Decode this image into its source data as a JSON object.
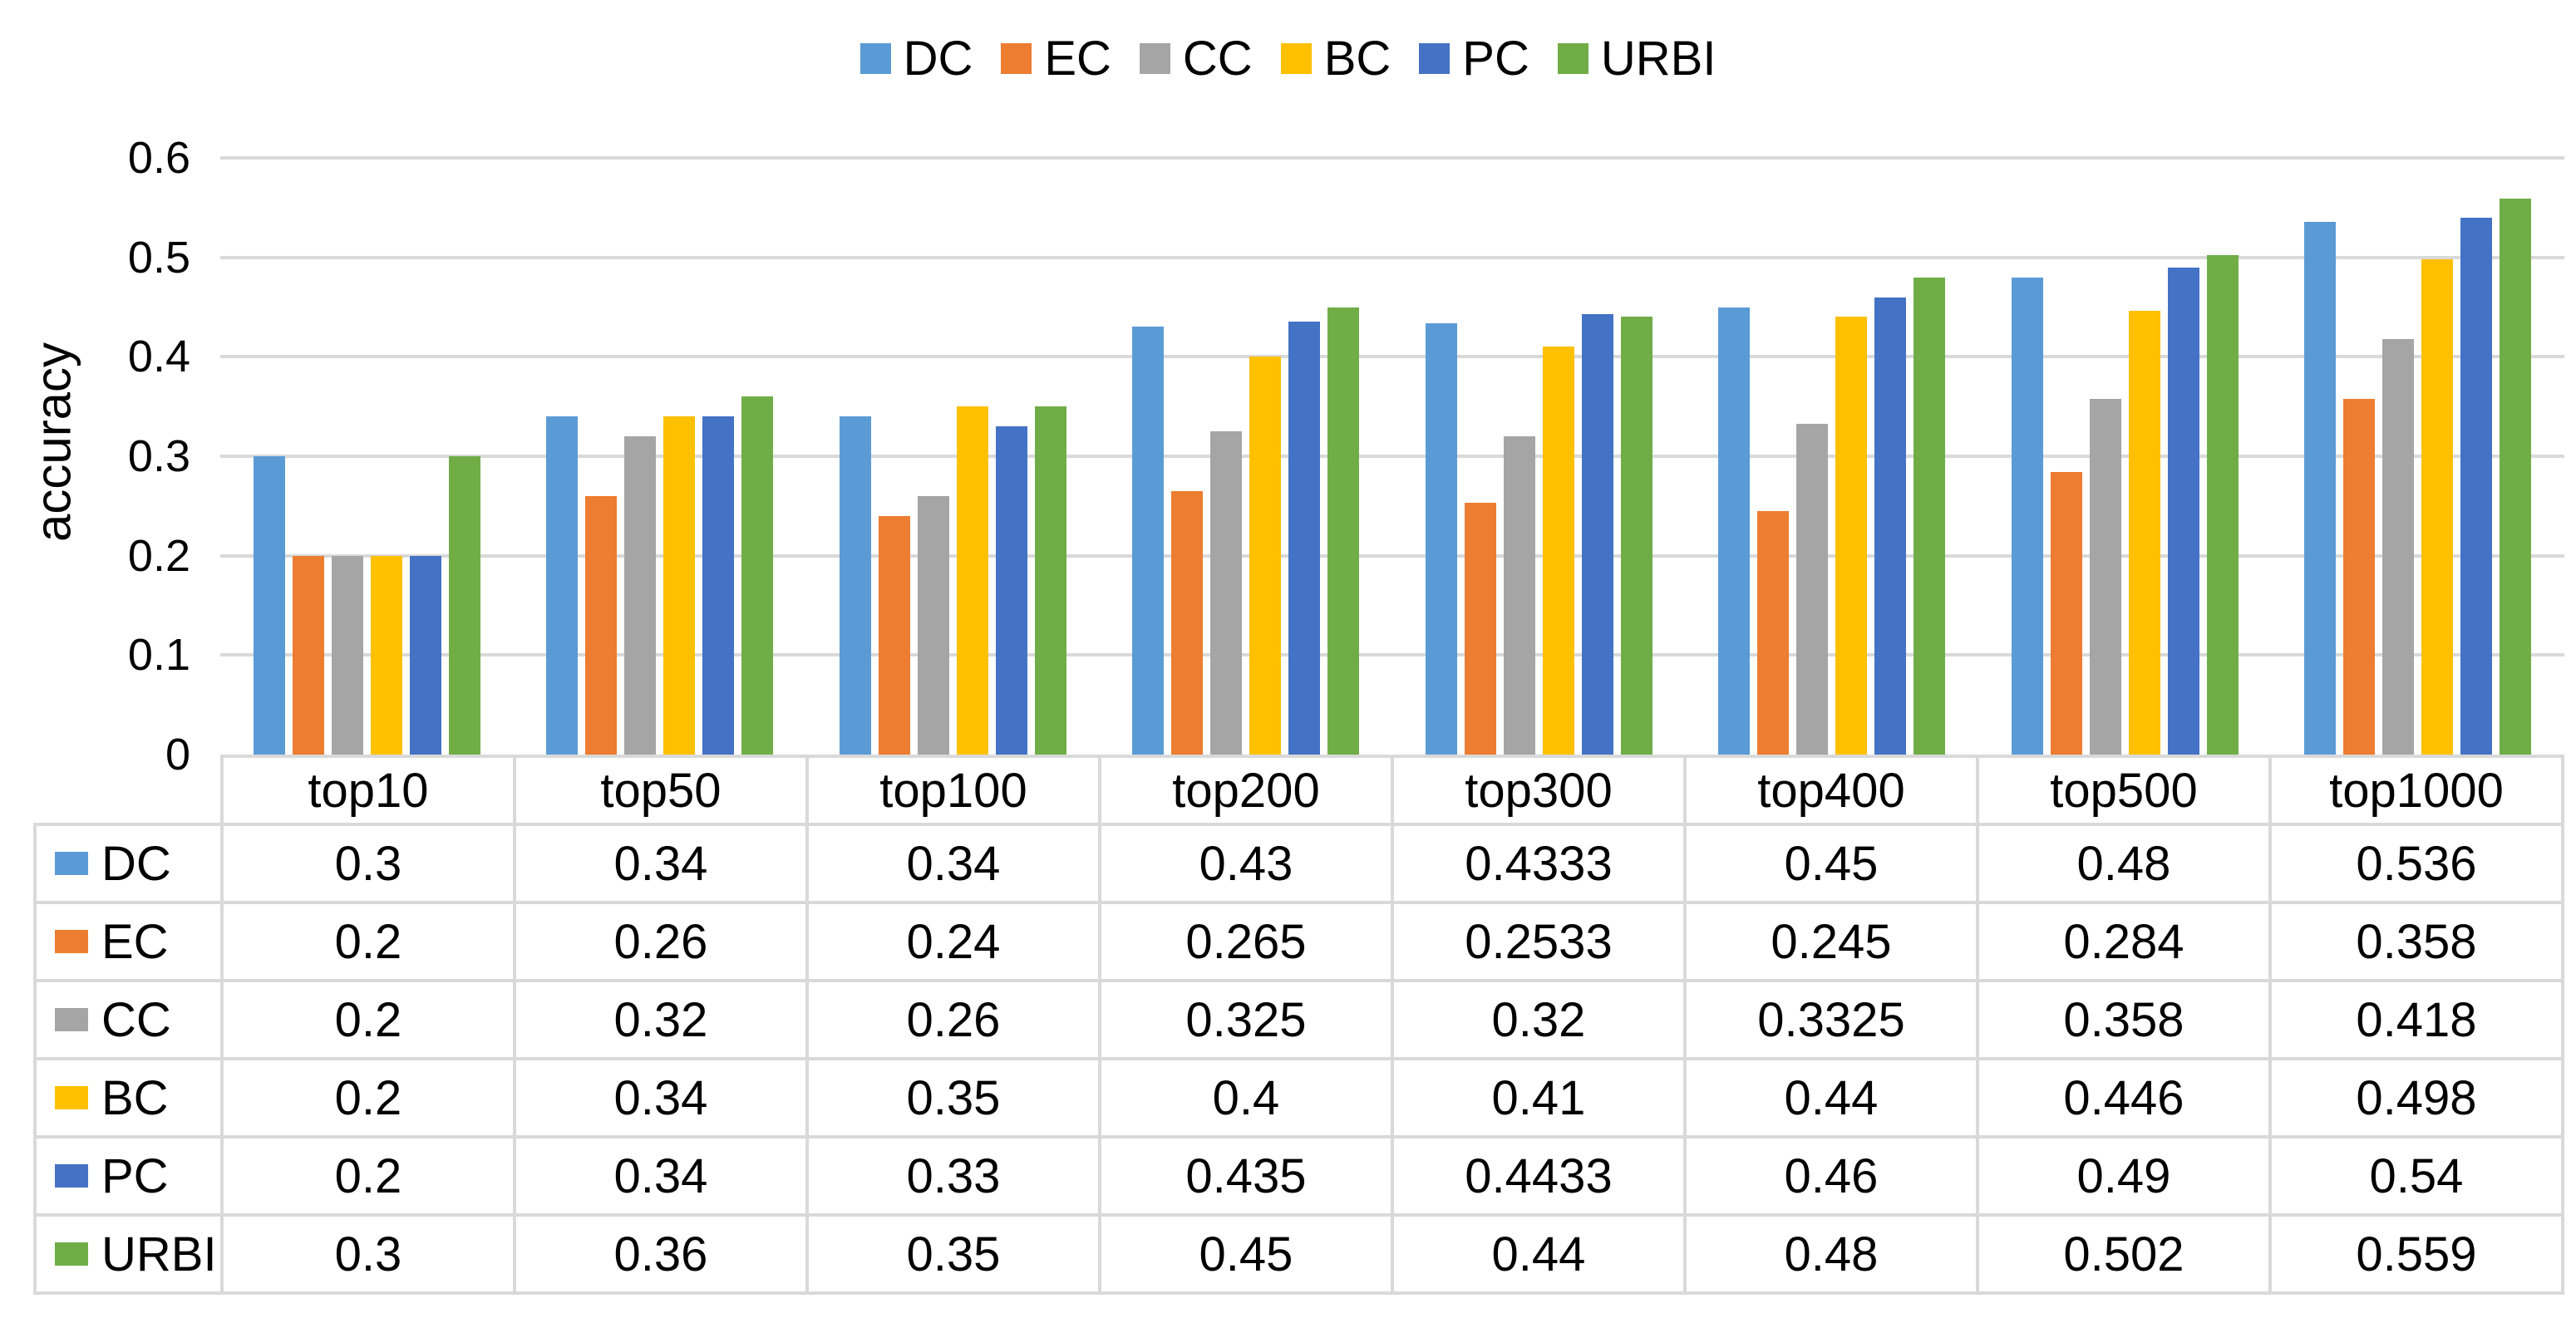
{
  "chart_data": {
    "type": "bar",
    "title": "",
    "xlabel": "",
    "ylabel": "accuracy",
    "ylim": [
      0,
      0.6
    ],
    "ytick_step": 0.1,
    "ytick_labels": [
      "0.6",
      "0.5",
      "0.4",
      "0.3",
      "0.2",
      "0.1",
      "0"
    ],
    "grid": true,
    "legend_position": "top",
    "categories": [
      "top10",
      "top50",
      "top100",
      "top200",
      "top300",
      "top400",
      "top500",
      "top1000"
    ],
    "series": [
      {
        "name": "DC",
        "color": "#5B9BD5",
        "values": [
          "0.3",
          "0.34",
          "0.34",
          "0.43",
          "0.4333",
          "0.45",
          "0.48",
          "0.536"
        ]
      },
      {
        "name": "EC",
        "color": "#ED7D31",
        "values": [
          "0.2",
          "0.26",
          "0.24",
          "0.265",
          "0.2533",
          "0.245",
          "0.284",
          "0.358"
        ]
      },
      {
        "name": "CC",
        "color": "#A5A5A5",
        "values": [
          "0.2",
          "0.32",
          "0.26",
          "0.325",
          "0.32",
          "0.3325",
          "0.358",
          "0.418"
        ]
      },
      {
        "name": "BC",
        "color": "#FFC000",
        "values": [
          "0.2",
          "0.34",
          "0.35",
          "0.4",
          "0.41",
          "0.44",
          "0.446",
          "0.498"
        ]
      },
      {
        "name": "PC",
        "color": "#4472C4",
        "values": [
          "0.2",
          "0.34",
          "0.33",
          "0.435",
          "0.4433",
          "0.46",
          "0.49",
          "0.54"
        ]
      },
      {
        "name": "URBI",
        "color": "#70AD47",
        "values": [
          "0.3",
          "0.36",
          "0.35",
          "0.45",
          "0.44",
          "0.48",
          "0.502",
          "0.559"
        ]
      }
    ]
  },
  "colors": {
    "background": "#FFFFFF",
    "gridline": "#D9D9D9",
    "table_border": "#D9D9D9",
    "text": "#000000"
  }
}
